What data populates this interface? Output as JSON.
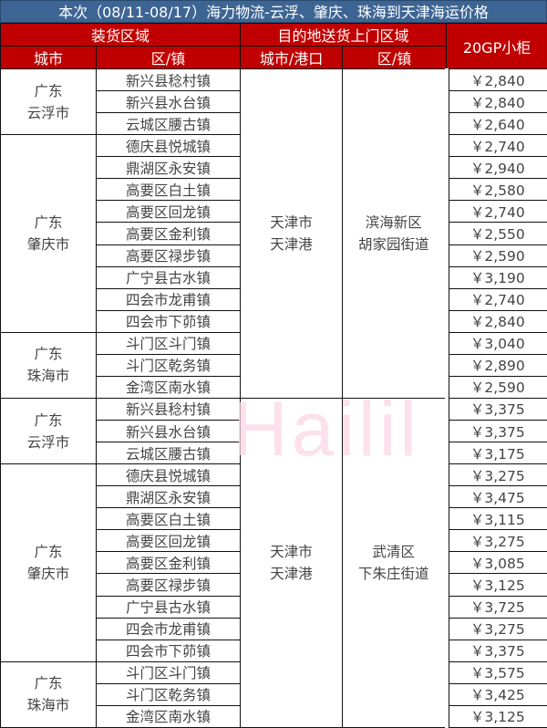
{
  "title": "本次（08/11-08/17）海力物流-云浮、肇庆、珠海到天津海运价格",
  "headers": {
    "loading_area": "装货区域",
    "dest_area": "目的地送货上门区域",
    "price": "20GP小柜",
    "city": "城市",
    "town": "区/镇",
    "dest_city": "城市/港口",
    "dest_town": "区/镇"
  },
  "watermark": "Hailil",
  "colors": {
    "title_bg": "#3d6593",
    "header_bg": "#c00000",
    "price": "#f4701f"
  },
  "sections": [
    {
      "dest_city": "天津市\n天津港",
      "dest_town": "滨海新区\n胡家园街道",
      "groups": [
        {
          "city": "广东\n云浮市",
          "rows": [
            [
              "新兴县稔村镇",
              "￥2,840"
            ],
            [
              "新兴县水台镇",
              "￥2,840"
            ],
            [
              "云城区腰古镇",
              "￥2,640"
            ]
          ]
        },
        {
          "city": "广东\n肇庆市",
          "rows": [
            [
              "德庆县悦城镇",
              "￥2,740"
            ],
            [
              "鼎湖区永安镇",
              "￥2,940"
            ],
            [
              "高要区白土镇",
              "￥2,580"
            ],
            [
              "高要区回龙镇",
              "￥2,740"
            ],
            [
              "高要区金利镇",
              "￥2,550"
            ],
            [
              "高要区禄步镇",
              "￥2,590"
            ],
            [
              "广宁县古水镇",
              "￥3,190"
            ],
            [
              "四会市龙甫镇",
              "￥2,740"
            ],
            [
              "四会市下茆镇",
              "￥2,840"
            ]
          ]
        },
        {
          "city": "广东\n珠海市",
          "rows": [
            [
              "斗门区斗门镇",
              "￥3,040"
            ],
            [
              "斗门区乾务镇",
              "￥2,890"
            ],
            [
              "金湾区南水镇",
              "￥2,590"
            ]
          ]
        }
      ]
    },
    {
      "dest_city": "天津市\n天津港",
      "dest_town": "武清区\n下朱庄街道",
      "groups": [
        {
          "city": "广东\n云浮市",
          "rows": [
            [
              "新兴县稔村镇",
              "￥3,375"
            ],
            [
              "新兴县水台镇",
              "￥3,375"
            ],
            [
              "云城区腰古镇",
              "￥3,175"
            ]
          ]
        },
        {
          "city": "广东\n肇庆市",
          "rows": [
            [
              "德庆县悦城镇",
              "￥3,275"
            ],
            [
              "鼎湖区永安镇",
              "￥3,475"
            ],
            [
              "高要区白土镇",
              "￥3,115"
            ],
            [
              "高要区回龙镇",
              "￥3,275"
            ],
            [
              "高要区金利镇",
              "￥3,085"
            ],
            [
              "高要区禄步镇",
              "￥3,125"
            ],
            [
              "广宁县古水镇",
              "￥3,725"
            ],
            [
              "四会市龙甫镇",
              "￥3,275"
            ],
            [
              "四会市下茆镇",
              "￥3,375"
            ]
          ]
        },
        {
          "city": "广东\n珠海市",
          "rows": [
            [
              "斗门区斗门镇",
              "￥3,575"
            ],
            [
              "斗门区乾务镇",
              "￥3,425"
            ],
            [
              "金湾区南水镇",
              "￥3,125"
            ]
          ]
        }
      ]
    }
  ]
}
